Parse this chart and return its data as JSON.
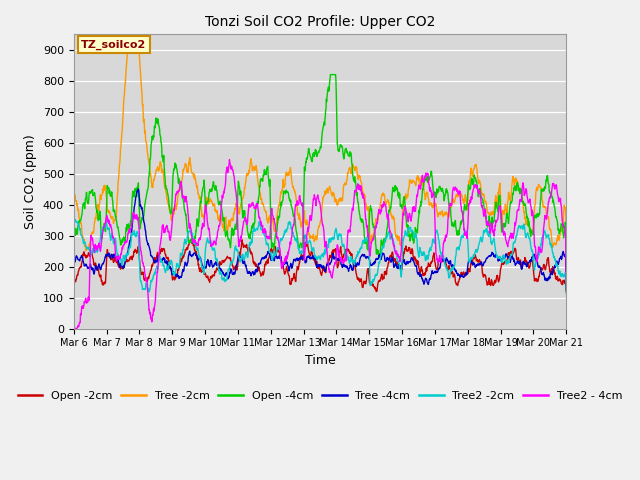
{
  "title": "Tonzi Soil CO2 Profile: Upper CO2",
  "xlabel": "Time",
  "ylabel": "Soil CO2 (ppm)",
  "ylim": [
    0,
    950
  ],
  "yticks": [
    0,
    100,
    200,
    300,
    400,
    500,
    600,
    700,
    800,
    900
  ],
  "legend_label": "TZ_soilco2",
  "series_colors": {
    "Open -2cm": "#cc0000",
    "Tree -2cm": "#ff9900",
    "Open -4cm": "#00cc00",
    "Tree -4cm": "#0000cc",
    "Tree2 -2cm": "#00cccc",
    "Tree2 - 4cm": "#ff00ff"
  },
  "fig_width": 6.4,
  "fig_height": 4.8,
  "dpi": 100,
  "n_days": 15,
  "start_day": 6,
  "points_per_day": 96,
  "bg_color": "#d8d8d8",
  "fig_bg": "#f0f0f0"
}
